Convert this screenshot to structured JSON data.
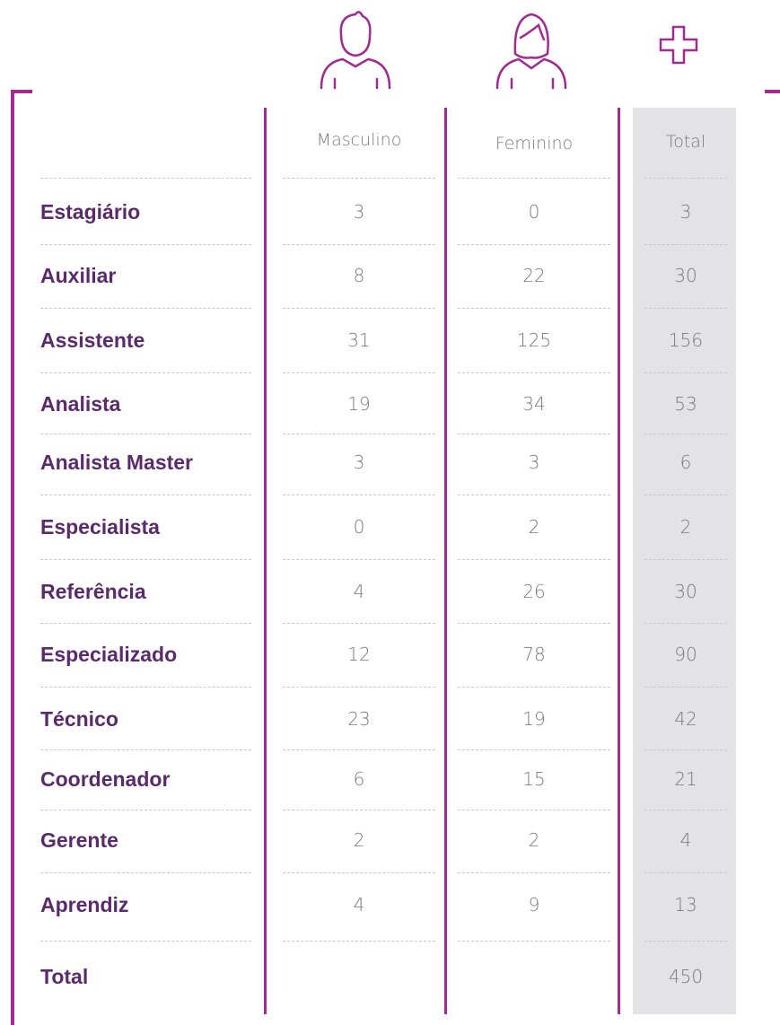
{
  "table": {
    "columns": [
      "Masculino",
      "Feminino",
      "Total"
    ],
    "rows": [
      {
        "label": "Estagiário",
        "values": [
          3,
          0,
          3
        ]
      },
      {
        "label": "Auxiliar",
        "values": [
          8,
          22,
          30
        ]
      },
      {
        "label": "Assistente",
        "values": [
          31,
          125,
          156
        ]
      },
      {
        "label": "Analista",
        "values": [
          19,
          34,
          53
        ]
      },
      {
        "label": "Analista Master",
        "values": [
          3,
          3,
          6
        ]
      },
      {
        "label": "Especialista",
        "values": [
          0,
          2,
          2
        ]
      },
      {
        "label": "Referência",
        "values": [
          4,
          26,
          30
        ]
      },
      {
        "label": "Especializado",
        "values": [
          12,
          78,
          90
        ]
      },
      {
        "label": "Técnico",
        "values": [
          23,
          19,
          42
        ]
      },
      {
        "label": "Coordenador",
        "values": [
          6,
          15,
          21
        ]
      },
      {
        "label": "Gerente",
        "values": [
          2,
          2,
          4
        ]
      },
      {
        "label": "Aprendiz",
        "values": [
          4,
          9,
          13
        ]
      }
    ],
    "total": {
      "label": "Total",
      "value": 450
    }
  }
}
